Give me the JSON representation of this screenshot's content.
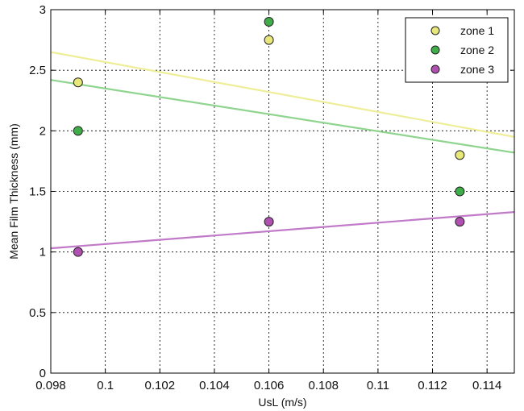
{
  "chart_data": {
    "type": "scatter",
    "xlabel": "UsL (m/s)",
    "ylabel": "Mean Film Thickness (mm)",
    "xlim": [
      0.098,
      0.115
    ],
    "ylim": [
      0,
      3
    ],
    "x_ticks": [
      "0.098",
      "0.1",
      "0.102",
      "0.104",
      "0.106",
      "0.108",
      "0.11",
      "0.112",
      "0.114"
    ],
    "y_ticks": [
      "0",
      "0.5",
      "1",
      "1.5",
      "2",
      "2.5",
      "3"
    ],
    "grid": true,
    "legend_position": "top-right",
    "series": [
      {
        "name": "zone 1",
        "color": "#e8e87a",
        "line_color": "#eeee99",
        "x": [
          0.099,
          0.106,
          0.113
        ],
        "y": [
          2.4,
          2.75,
          1.8
        ],
        "trend": [
          [
            0.098,
            2.65
          ],
          [
            0.115,
            1.95
          ]
        ]
      },
      {
        "name": "zone 2",
        "color": "#3fae4a",
        "line_color": "#8fd48f",
        "x": [
          0.099,
          0.106,
          0.113
        ],
        "y": [
          2.0,
          2.9,
          1.5
        ],
        "trend": [
          [
            0.098,
            2.42
          ],
          [
            0.115,
            1.82
          ]
        ]
      },
      {
        "name": "zone 3",
        "color": "#b050b0",
        "line_color": "#c07ac8",
        "x": [
          0.099,
          0.106,
          0.113
        ],
        "y": [
          1.0,
          1.25,
          1.25
        ],
        "trend": [
          [
            0.098,
            1.03
          ],
          [
            0.115,
            1.33
          ]
        ]
      }
    ]
  }
}
